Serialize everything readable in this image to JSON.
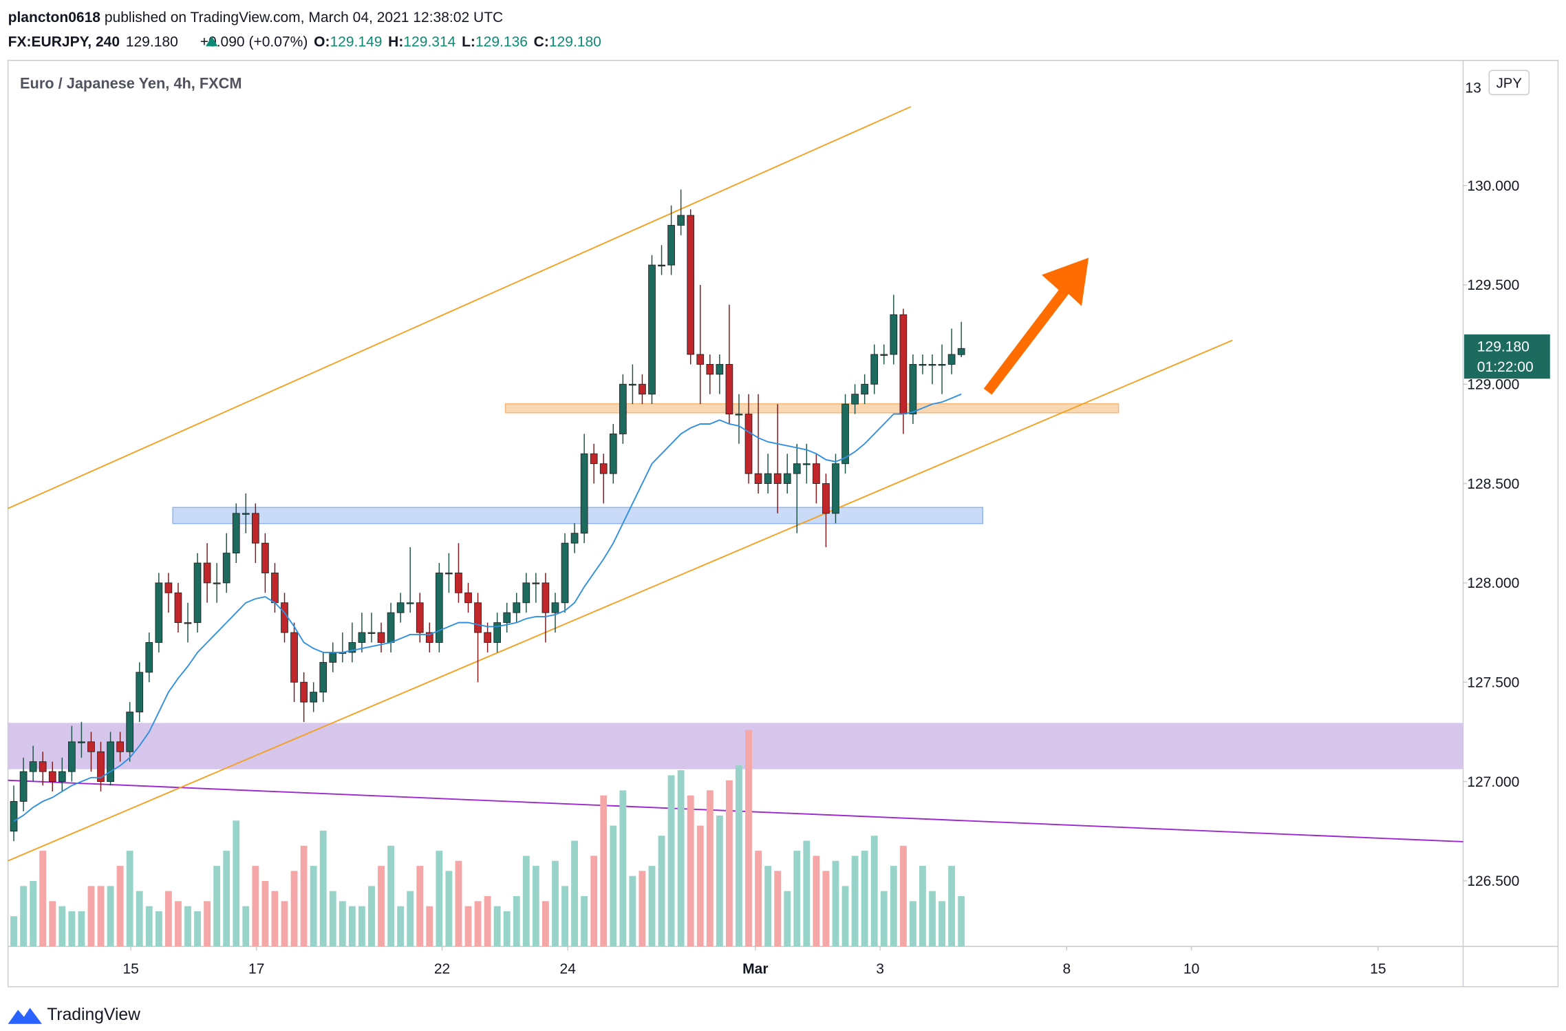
{
  "header": {
    "user": "plancton0618",
    "published": " published on TradingView.com, March 04, 2021 12:38:02 UTC",
    "symbol": "FX:EURJPY, 240",
    "price": "129.180",
    "change": "+0.090 (+0.07%)",
    "o_label": "O:",
    "o": "129.149",
    "h_label": "H:",
    "h": "129.314",
    "l_label": "L:",
    "l": "129.136",
    "c_label": "C:",
    "c": "129.180"
  },
  "footer": {
    "brand": "TradingView"
  },
  "chart_data": {
    "type": "candlestick",
    "title": "Euro / Japanese Yen, 4h, FXCM",
    "currency": "JPY",
    "last_price_label": "129.180",
    "countdown": "01:22:00",
    "up_color": "#1d6b5f",
    "down_color": "#c0262a",
    "volume_up_color": "#98d3ca",
    "volume_down_color": "#f5a6a6",
    "ma_color": "#2f8fe0",
    "open": [
      126.75,
      126.9,
      127.05,
      127.1,
      127.05,
      127.0,
      127.05,
      127.2,
      127.2,
      127.15,
      127.0,
      127.2,
      127.15,
      127.35,
      127.55,
      127.7,
      128.0,
      127.95,
      127.8,
      127.8,
      128.1,
      128.0,
      128.0,
      128.15,
      128.35,
      128.35,
      128.2,
      128.05,
      127.9,
      127.75,
      127.5,
      127.4,
      127.45,
      127.6,
      127.65,
      127.65,
      127.7,
      127.75,
      127.75,
      127.7,
      127.85,
      127.9,
      127.9,
      127.75,
      127.7,
      128.05,
      128.05,
      127.95,
      127.9,
      127.75,
      127.7,
      127.8,
      127.85,
      127.9,
      128.0,
      128.0,
      127.85,
      127.9,
      128.2,
      128.25,
      128.65,
      128.6,
      128.55,
      128.75,
      129.0,
      129.0,
      128.95,
      129.6,
      129.6,
      129.8,
      129.85,
      129.15,
      129.1,
      129.05,
      129.1,
      128.85,
      128.85,
      128.55,
      128.5,
      128.55,
      128.5,
      128.55,
      128.6,
      128.6,
      128.5,
      128.35,
      128.6,
      128.9,
      128.95,
      129.0,
      129.15,
      129.15,
      129.35,
      128.85,
      129.1,
      129.1,
      129.1,
      129.1,
      129.149
    ],
    "high": [
      126.98,
      127.12,
      127.18,
      127.15,
      127.1,
      127.12,
      127.28,
      127.3,
      127.25,
      127.2,
      127.25,
      127.25,
      127.4,
      127.6,
      127.75,
      128.05,
      128.05,
      128.0,
      127.9,
      128.15,
      128.2,
      128.1,
      128.25,
      128.4,
      128.45,
      128.4,
      128.25,
      128.1,
      127.95,
      127.8,
      127.55,
      127.5,
      127.65,
      127.7,
      127.75,
      127.8,
      127.85,
      127.85,
      127.8,
      127.9,
      127.95,
      128.18,
      127.95,
      127.8,
      128.1,
      128.15,
      128.2,
      128.0,
      127.95,
      127.8,
      127.85,
      127.9,
      127.95,
      128.05,
      128.05,
      128.05,
      127.95,
      128.25,
      128.3,
      128.75,
      128.7,
      128.65,
      128.8,
      129.05,
      129.1,
      129.05,
      129.65,
      129.7,
      129.9,
      129.98,
      129.88,
      129.5,
      129.15,
      129.15,
      129.4,
      128.95,
      128.95,
      128.95,
      128.65,
      128.9,
      128.65,
      128.7,
      128.7,
      128.65,
      128.55,
      128.65,
      128.95,
      129.0,
      129.05,
      129.2,
      129.2,
      129.45,
      129.38,
      129.15,
      129.15,
      129.15,
      129.2,
      129.28,
      129.314
    ],
    "low": [
      126.7,
      126.85,
      127.0,
      126.98,
      126.95,
      126.95,
      127.0,
      127.12,
      127.05,
      126.95,
      126.98,
      127.1,
      127.1,
      127.3,
      127.5,
      127.65,
      127.85,
      127.75,
      127.7,
      127.75,
      127.9,
      127.9,
      127.95,
      128.1,
      128.25,
      128.1,
      127.95,
      127.85,
      127.7,
      127.4,
      127.3,
      127.35,
      127.4,
      127.55,
      127.6,
      127.6,
      127.65,
      127.7,
      127.65,
      127.65,
      127.8,
      127.85,
      127.7,
      127.65,
      127.65,
      127.95,
      127.9,
      127.85,
      127.5,
      127.65,
      127.65,
      127.75,
      127.8,
      127.85,
      127.9,
      127.7,
      127.75,
      127.85,
      128.15,
      128.2,
      128.5,
      128.4,
      128.5,
      128.7,
      128.9,
      128.9,
      128.9,
      129.55,
      129.55,
      129.75,
      129.1,
      128.9,
      128.95,
      128.95,
      128.8,
      128.7,
      128.5,
      128.45,
      128.45,
      128.35,
      128.45,
      128.25,
      128.5,
      128.4,
      128.18,
      128.3,
      128.55,
      128.85,
      128.9,
      128.95,
      129.1,
      129.1,
      128.75,
      128.8,
      129.05,
      129.0,
      128.95,
      129.05,
      129.136
    ],
    "close": [
      126.9,
      127.05,
      127.1,
      127.05,
      127.0,
      127.05,
      127.2,
      127.2,
      127.15,
      127.0,
      127.2,
      127.15,
      127.35,
      127.55,
      127.7,
      128.0,
      127.95,
      127.8,
      127.8,
      128.1,
      128.0,
      128.0,
      128.15,
      128.35,
      128.35,
      128.2,
      128.05,
      127.9,
      127.75,
      127.5,
      127.4,
      127.45,
      127.6,
      127.65,
      127.65,
      127.7,
      127.75,
      127.75,
      127.7,
      127.85,
      127.9,
      127.9,
      127.75,
      127.7,
      128.05,
      128.05,
      127.95,
      127.9,
      127.75,
      127.7,
      127.8,
      127.85,
      127.9,
      128.0,
      128.0,
      127.85,
      127.9,
      128.2,
      128.25,
      128.65,
      128.6,
      128.55,
      128.75,
      129.0,
      129.0,
      128.95,
      129.6,
      129.6,
      129.8,
      129.85,
      129.15,
      129.1,
      129.05,
      129.1,
      128.85,
      128.85,
      128.55,
      128.5,
      128.55,
      128.5,
      128.55,
      128.6,
      128.6,
      128.5,
      128.35,
      128.6,
      128.9,
      128.95,
      129.0,
      129.15,
      129.15,
      129.35,
      128.85,
      129.1,
      129.1,
      129.1,
      129.1,
      129.15,
      129.18
    ],
    "volume": [
      30,
      60,
      65,
      95,
      45,
      40,
      35,
      35,
      60,
      60,
      60,
      80,
      95,
      55,
      40,
      35,
      55,
      45,
      40,
      35,
      45,
      80,
      95,
      125,
      40,
      80,
      65,
      55,
      45,
      75,
      100,
      80,
      115,
      55,
      45,
      40,
      40,
      60,
      80,
      100,
      40,
      55,
      80,
      40,
      95,
      75,
      85,
      40,
      45,
      50,
      40,
      35,
      50,
      90,
      80,
      45,
      85,
      60,
      105,
      50,
      90,
      150,
      120,
      155,
      70,
      75,
      80,
      110,
      170,
      175,
      150,
      120,
      155,
      130,
      165,
      180,
      215,
      95,
      80,
      75,
      55,
      95,
      105,
      90,
      75,
      85,
      60,
      90,
      95,
      110,
      55,
      80,
      100,
      45,
      80,
      55,
      45,
      80,
      50
    ],
    "volume_ylim": [
      0,
      880
    ],
    "ma": [
      126.8,
      126.83,
      126.87,
      126.9,
      126.92,
      126.95,
      126.98,
      127.0,
      127.02,
      127.02,
      127.05,
      127.08,
      127.12,
      127.18,
      127.25,
      127.35,
      127.45,
      127.52,
      127.58,
      127.65,
      127.7,
      127.75,
      127.8,
      127.85,
      127.9,
      127.92,
      127.93,
      127.9,
      127.85,
      127.78,
      127.7,
      127.67,
      127.65,
      127.65,
      127.65,
      127.66,
      127.67,
      127.68,
      127.69,
      127.7,
      127.72,
      127.74,
      127.74,
      127.74,
      127.76,
      127.78,
      127.8,
      127.8,
      127.79,
      127.78,
      127.78,
      127.79,
      127.8,
      127.82,
      127.83,
      127.83,
      127.84,
      127.86,
      127.9,
      127.98,
      128.05,
      128.12,
      128.2,
      128.3,
      128.4,
      128.5,
      128.6,
      128.65,
      128.7,
      128.75,
      128.78,
      128.8,
      128.8,
      128.82,
      128.8,
      128.79,
      128.76,
      128.73,
      128.71,
      128.7,
      128.69,
      128.68,
      128.67,
      128.65,
      128.62,
      128.61,
      128.63,
      128.66,
      128.7,
      128.75,
      128.8,
      128.85,
      128.85,
      128.86,
      128.88,
      128.9,
      128.91,
      128.93,
      128.95
    ],
    "xlim": [
      -0.6,
      149.9
    ],
    "xticks": [
      {
        "value": 12.1,
        "label": "15"
      },
      {
        "value": 25.1,
        "label": "17"
      },
      {
        "value": 44.3,
        "label": "22"
      },
      {
        "value": 57.3,
        "label": "24"
      },
      {
        "value": 76.7,
        "label": "Mar"
      },
      {
        "value": 89.6,
        "label": "3"
      },
      {
        "value": 108.9,
        "label": "8"
      },
      {
        "value": 121.8,
        "label": "10"
      },
      {
        "value": 141.1,
        "label": "15"
      }
    ],
    "ylim": [
      126.17,
      130.63
    ],
    "yticks": [
      {
        "value": 126.5,
        "label": "126.500"
      },
      {
        "value": 127,
        "label": "127.000"
      },
      {
        "value": 127.5,
        "label": "127.500"
      },
      {
        "value": 128,
        "label": "128.000"
      },
      {
        "value": 128.5,
        "label": "128.500"
      },
      {
        "value": 129,
        "label": "129.000"
      },
      {
        "value": 129.5,
        "label": "129.500"
      },
      {
        "value": 130,
        "label": "130.000"
      }
    ],
    "grid": false
  }
}
